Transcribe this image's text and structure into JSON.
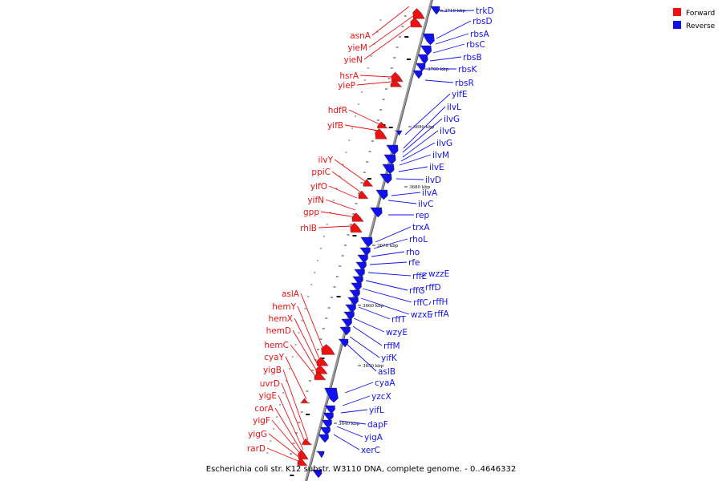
{
  "title": "Escherichia coli str. K12 substr. W3110 DNA, complete genome. - 0..4646332",
  "legend": [
    {
      "label": "Forward",
      "color": "#ee1111"
    },
    {
      "label": "Reverse",
      "color": "#1111ee"
    }
  ],
  "colors": {
    "forward": "#ee1111",
    "reverse": "#1111ee",
    "backbone": "#888888"
  },
  "ticks": [
    "3640 kbp",
    "3650 kbp",
    "3660 kbp",
    "3670 kbp",
    "3680 kbp",
    "3690 kbp",
    "3700 kbp",
    "3710 kbp"
  ],
  "forward_genes": [
    "asnA",
    "yieM",
    "yieN",
    "hsrA",
    "yieP",
    "hdfR",
    "yifB",
    "ilvY",
    "ppiC",
    "yifO",
    "yifN",
    "gpp",
    "rhlB",
    "aslA",
    "hemY",
    "hemX",
    "hemD",
    "hemC",
    "cyaY",
    "yigB",
    "uvrD",
    "yigE",
    "corA",
    "yigF",
    "yigG",
    "rarD"
  ],
  "reverse_genes": [
    "trkD",
    "rbsD",
    "rbsA",
    "rbsC",
    "rbsB",
    "rbsK",
    "rbsR",
    "yifE",
    "ilvL",
    "ilvG",
    "ilvG",
    "ilvG",
    "ilvM",
    "ilvE",
    "ilvD",
    "ilvA",
    "ilvC",
    "rep",
    "trxA",
    "rhoL",
    "rho",
    "rfe",
    "rffE",
    "wzzE",
    "rffD",
    "rffG",
    "rffC",
    "rffH",
    "wzxE",
    "rffA",
    "rffT",
    "wzyE",
    "rffM",
    "yifK",
    "aslB",
    "cyaA",
    "yzcX",
    "yifL",
    "dapF",
    "yigA",
    "xerC"
  ]
}
